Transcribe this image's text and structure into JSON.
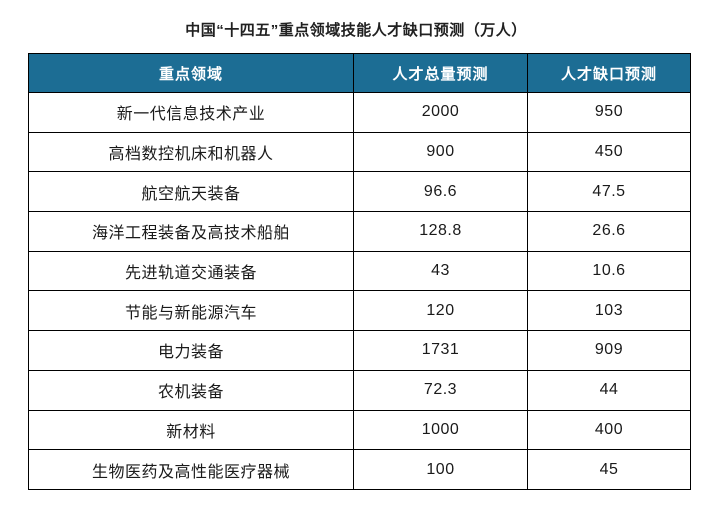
{
  "title": "中国“十四五”重点领域技能人才缺口预测（万人）",
  "colors": {
    "header_bg": "#1C6D94",
    "header_text": "#ffffff",
    "grid_line": "#000000",
    "cell_text": "#1a1a1a",
    "title_text": "#212121"
  },
  "table": {
    "headers": [
      "重点领域",
      "人才总量预测",
      "人才缺口预测"
    ],
    "rows": [
      {
        "field": "新一代信息技术产业",
        "total": "2000",
        "gap": "950"
      },
      {
        "field": "高档数控机床和机器人",
        "total": "900",
        "gap": "450"
      },
      {
        "field": "航空航天装备",
        "total": "96.6",
        "gap": "47.5"
      },
      {
        "field": "海洋工程装备及高技术船舶",
        "total": "128.8",
        "gap": "26.6"
      },
      {
        "field": "先进轨道交通装备",
        "total": "43",
        "gap": "10.6"
      },
      {
        "field": "节能与新能源汽车",
        "total": "120",
        "gap": "103"
      },
      {
        "field": "电力装备",
        "total": "1731",
        "gap": "909"
      },
      {
        "field": "农机装备",
        "total": "72.3",
        "gap": "44"
      },
      {
        "field": "新材料",
        "total": "1000",
        "gap": "400"
      },
      {
        "field": "生物医药及高性能医疗器械",
        "total": "100",
        "gap": "45"
      }
    ]
  },
  "chart_data": {
    "type": "table",
    "title": "中国“十四五”重点领域技能人才缺口预测（万人）",
    "unit": "万人",
    "categories": [
      "新一代信息技术产业",
      "高档数控机床和机器人",
      "航空航天装备",
      "海洋工程装备及高技术船舶",
      "先进轨道交通装备",
      "节能与新能源汽车",
      "电力装备",
      "农机装备",
      "新材料",
      "生物医药及高性能医疗器械"
    ],
    "series": [
      {
        "name": "人才总量预测",
        "values": [
          2000,
          900,
          96.6,
          128.8,
          43,
          120,
          1731,
          72.3,
          1000,
          100
        ]
      },
      {
        "name": "人才缺口预测",
        "values": [
          950,
          450,
          47.5,
          26.6,
          10.6,
          103,
          909,
          44,
          400,
          45
        ]
      }
    ]
  }
}
